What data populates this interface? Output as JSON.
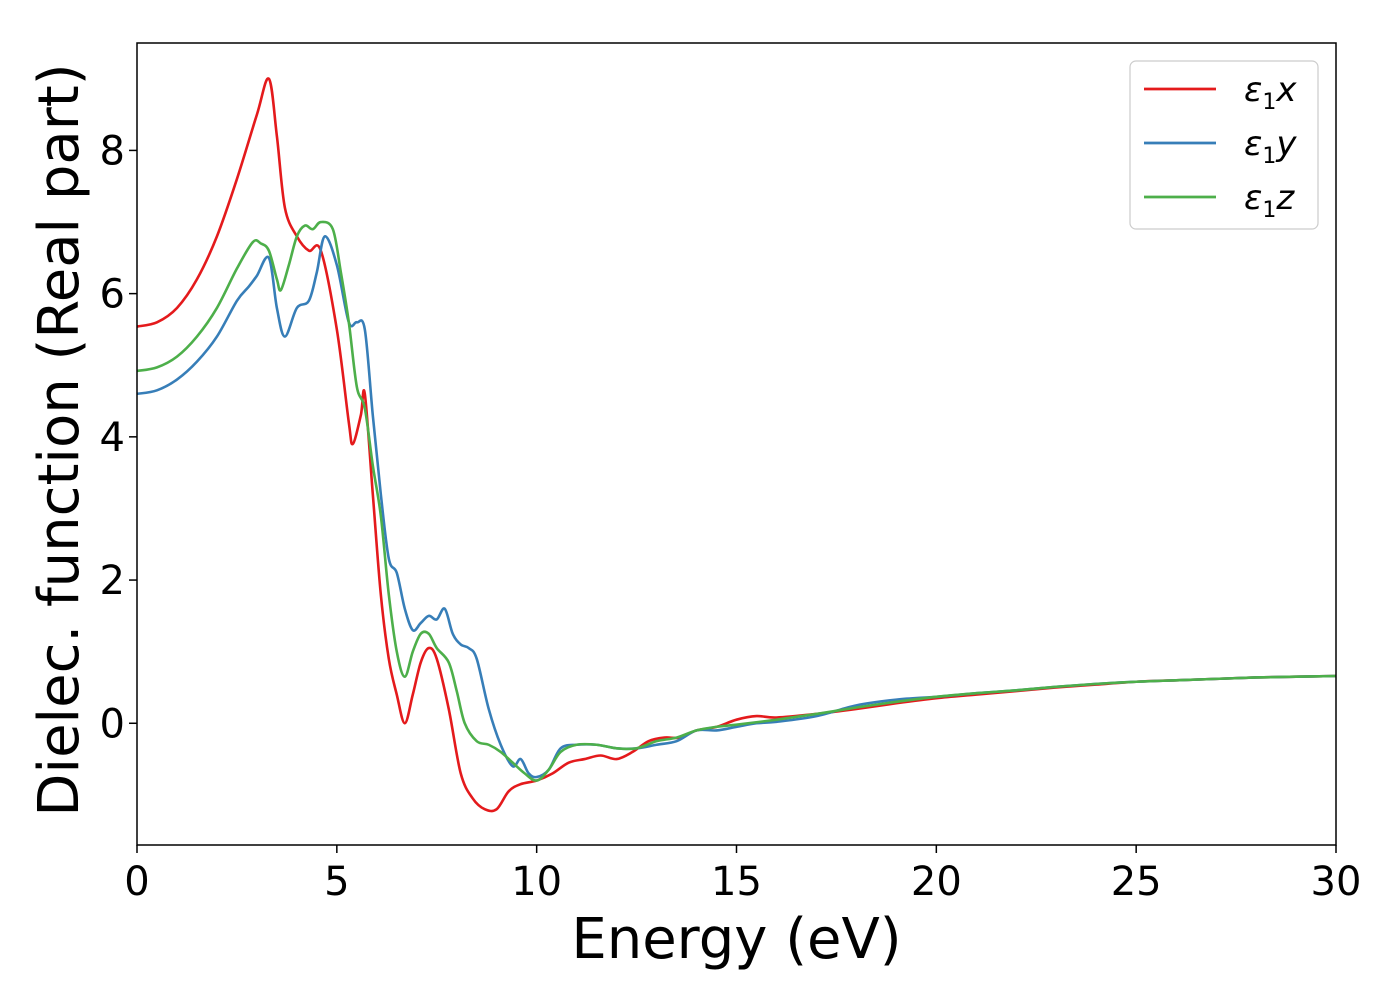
{
  "chart_data": {
    "type": "line",
    "xlabel": "Energy (eV)",
    "ylabel": "Dielec. function (Real part)",
    "xlim": [
      0,
      30
    ],
    "ylim": [
      -1.7,
      9.5
    ],
    "xticks": [
      0,
      5,
      10,
      15,
      20,
      25,
      30
    ],
    "yticks": [
      0,
      2,
      4,
      6,
      8
    ],
    "grid": false,
    "legend_position": "top-right",
    "series": [
      {
        "name": "ε1x",
        "symbol": "ε",
        "subscript": "1",
        "axis": "x",
        "color": "#e41a1c",
        "points": [
          [
            0,
            5.54
          ],
          [
            0.5,
            5.6
          ],
          [
            1.0,
            5.8
          ],
          [
            1.5,
            6.2
          ],
          [
            2.0,
            6.8
          ],
          [
            2.5,
            7.6
          ],
          [
            3.0,
            8.5
          ],
          [
            3.3,
            9.0
          ],
          [
            3.5,
            8.2
          ],
          [
            3.7,
            7.2
          ],
          [
            4.0,
            6.8
          ],
          [
            4.3,
            6.6
          ],
          [
            4.6,
            6.6
          ],
          [
            5.0,
            5.5
          ],
          [
            5.3,
            4.2
          ],
          [
            5.4,
            3.9
          ],
          [
            5.6,
            4.3
          ],
          [
            5.7,
            4.6
          ],
          [
            5.9,
            3.2
          ],
          [
            6.1,
            1.8
          ],
          [
            6.3,
            0.9
          ],
          [
            6.5,
            0.4
          ],
          [
            6.7,
            0.0
          ],
          [
            6.9,
            0.4
          ],
          [
            7.1,
            0.85
          ],
          [
            7.3,
            1.05
          ],
          [
            7.5,
            0.9
          ],
          [
            7.8,
            0.2
          ],
          [
            8.1,
            -0.7
          ],
          [
            8.4,
            -1.05
          ],
          [
            8.7,
            -1.2
          ],
          [
            9.0,
            -1.2
          ],
          [
            9.3,
            -0.95
          ],
          [
            9.6,
            -0.85
          ],
          [
            10.0,
            -0.8
          ],
          [
            10.4,
            -0.7
          ],
          [
            10.8,
            -0.55
          ],
          [
            11.2,
            -0.5
          ],
          [
            11.6,
            -0.45
          ],
          [
            12.0,
            -0.5
          ],
          [
            12.4,
            -0.4
          ],
          [
            12.8,
            -0.25
          ],
          [
            13.2,
            -0.2
          ],
          [
            13.6,
            -0.2
          ],
          [
            14.0,
            -0.1
          ],
          [
            14.5,
            -0.05
          ],
          [
            15.0,
            0.05
          ],
          [
            15.5,
            0.1
          ],
          [
            16.0,
            0.08
          ],
          [
            17.0,
            0.13
          ],
          [
            18.0,
            0.2
          ],
          [
            19.0,
            0.28
          ],
          [
            20.0,
            0.35
          ],
          [
            21.0,
            0.4
          ],
          [
            22.0,
            0.45
          ],
          [
            23.0,
            0.5
          ],
          [
            24.0,
            0.54
          ],
          [
            25.0,
            0.58
          ],
          [
            26.0,
            0.6
          ],
          [
            27.0,
            0.62
          ],
          [
            28.0,
            0.64
          ],
          [
            29.0,
            0.65
          ],
          [
            30.0,
            0.66
          ]
        ]
      },
      {
        "name": "ε1y",
        "symbol": "ε",
        "subscript": "1",
        "axis": "y",
        "color": "#377eb8",
        "points": [
          [
            0,
            4.6
          ],
          [
            0.5,
            4.65
          ],
          [
            1.0,
            4.8
          ],
          [
            1.5,
            5.05
          ],
          [
            2.0,
            5.4
          ],
          [
            2.5,
            5.9
          ],
          [
            2.8,
            6.1
          ],
          [
            3.0,
            6.25
          ],
          [
            3.3,
            6.5
          ],
          [
            3.5,
            5.8
          ],
          [
            3.7,
            5.4
          ],
          [
            4.0,
            5.8
          ],
          [
            4.3,
            5.9
          ],
          [
            4.5,
            6.3
          ],
          [
            4.7,
            6.8
          ],
          [
            5.0,
            6.4
          ],
          [
            5.3,
            5.6
          ],
          [
            5.5,
            5.6
          ],
          [
            5.7,
            5.5
          ],
          [
            5.9,
            4.3
          ],
          [
            6.1,
            3.2
          ],
          [
            6.3,
            2.3
          ],
          [
            6.5,
            2.1
          ],
          [
            6.7,
            1.6
          ],
          [
            6.9,
            1.3
          ],
          [
            7.1,
            1.4
          ],
          [
            7.3,
            1.5
          ],
          [
            7.5,
            1.45
          ],
          [
            7.7,
            1.6
          ],
          [
            7.9,
            1.25
          ],
          [
            8.1,
            1.1
          ],
          [
            8.3,
            1.05
          ],
          [
            8.5,
            0.9
          ],
          [
            8.8,
            0.2
          ],
          [
            9.1,
            -0.3
          ],
          [
            9.4,
            -0.6
          ],
          [
            9.6,
            -0.5
          ],
          [
            9.8,
            -0.7
          ],
          [
            10.0,
            -0.75
          ],
          [
            10.3,
            -0.65
          ],
          [
            10.6,
            -0.35
          ],
          [
            11.0,
            -0.3
          ],
          [
            11.5,
            -0.3
          ],
          [
            12.0,
            -0.35
          ],
          [
            12.5,
            -0.35
          ],
          [
            13.0,
            -0.3
          ],
          [
            13.5,
            -0.25
          ],
          [
            14.0,
            -0.1
          ],
          [
            14.5,
            -0.1
          ],
          [
            15.0,
            -0.05
          ],
          [
            15.5,
            0.0
          ],
          [
            16.0,
            0.02
          ],
          [
            17.0,
            0.1
          ],
          [
            18.0,
            0.25
          ],
          [
            19.0,
            0.33
          ],
          [
            20.0,
            0.37
          ],
          [
            21.0,
            0.42
          ],
          [
            22.0,
            0.46
          ],
          [
            23.0,
            0.51
          ],
          [
            24.0,
            0.55
          ],
          [
            25.0,
            0.58
          ],
          [
            26.0,
            0.6
          ],
          [
            27.0,
            0.62
          ],
          [
            28.0,
            0.64
          ],
          [
            29.0,
            0.65
          ],
          [
            30.0,
            0.66
          ]
        ]
      },
      {
        "name": "ε1z",
        "symbol": "ε",
        "subscript": "1",
        "axis": "z",
        "color": "#4daf4a",
        "points": [
          [
            0,
            4.92
          ],
          [
            0.5,
            4.97
          ],
          [
            1.0,
            5.12
          ],
          [
            1.5,
            5.4
          ],
          [
            2.0,
            5.8
          ],
          [
            2.5,
            6.35
          ],
          [
            2.9,
            6.72
          ],
          [
            3.1,
            6.7
          ],
          [
            3.3,
            6.6
          ],
          [
            3.5,
            6.2
          ],
          [
            3.6,
            6.05
          ],
          [
            3.8,
            6.4
          ],
          [
            4.0,
            6.8
          ],
          [
            4.2,
            6.95
          ],
          [
            4.4,
            6.9
          ],
          [
            4.6,
            7.0
          ],
          [
            4.9,
            6.9
          ],
          [
            5.1,
            6.3
          ],
          [
            5.3,
            5.6
          ],
          [
            5.5,
            4.7
          ],
          [
            5.7,
            4.4
          ],
          [
            5.9,
            3.6
          ],
          [
            6.1,
            2.9
          ],
          [
            6.3,
            1.8
          ],
          [
            6.5,
            1.0
          ],
          [
            6.7,
            0.65
          ],
          [
            6.9,
            1.0
          ],
          [
            7.1,
            1.25
          ],
          [
            7.3,
            1.25
          ],
          [
            7.5,
            1.05
          ],
          [
            7.8,
            0.85
          ],
          [
            8.0,
            0.45
          ],
          [
            8.2,
            0.0
          ],
          [
            8.5,
            -0.25
          ],
          [
            8.8,
            -0.3
          ],
          [
            9.1,
            -0.4
          ],
          [
            9.4,
            -0.55
          ],
          [
            9.7,
            -0.7
          ],
          [
            10.0,
            -0.8
          ],
          [
            10.3,
            -0.65
          ],
          [
            10.6,
            -0.4
          ],
          [
            11.0,
            -0.3
          ],
          [
            11.5,
            -0.3
          ],
          [
            12.0,
            -0.35
          ],
          [
            12.5,
            -0.35
          ],
          [
            13.0,
            -0.25
          ],
          [
            13.5,
            -0.2
          ],
          [
            14.0,
            -0.1
          ],
          [
            14.5,
            -0.05
          ],
          [
            15.0,
            -0.02
          ],
          [
            16.0,
            0.05
          ],
          [
            17.0,
            0.13
          ],
          [
            18.0,
            0.22
          ],
          [
            19.0,
            0.3
          ],
          [
            20.0,
            0.37
          ],
          [
            21.0,
            0.42
          ],
          [
            22.0,
            0.46
          ],
          [
            23.0,
            0.51
          ],
          [
            24.0,
            0.55
          ],
          [
            25.0,
            0.58
          ],
          [
            26.0,
            0.6
          ],
          [
            27.0,
            0.62
          ],
          [
            28.0,
            0.64
          ],
          [
            29.0,
            0.65
          ],
          [
            30.0,
            0.66
          ]
        ]
      }
    ]
  }
}
